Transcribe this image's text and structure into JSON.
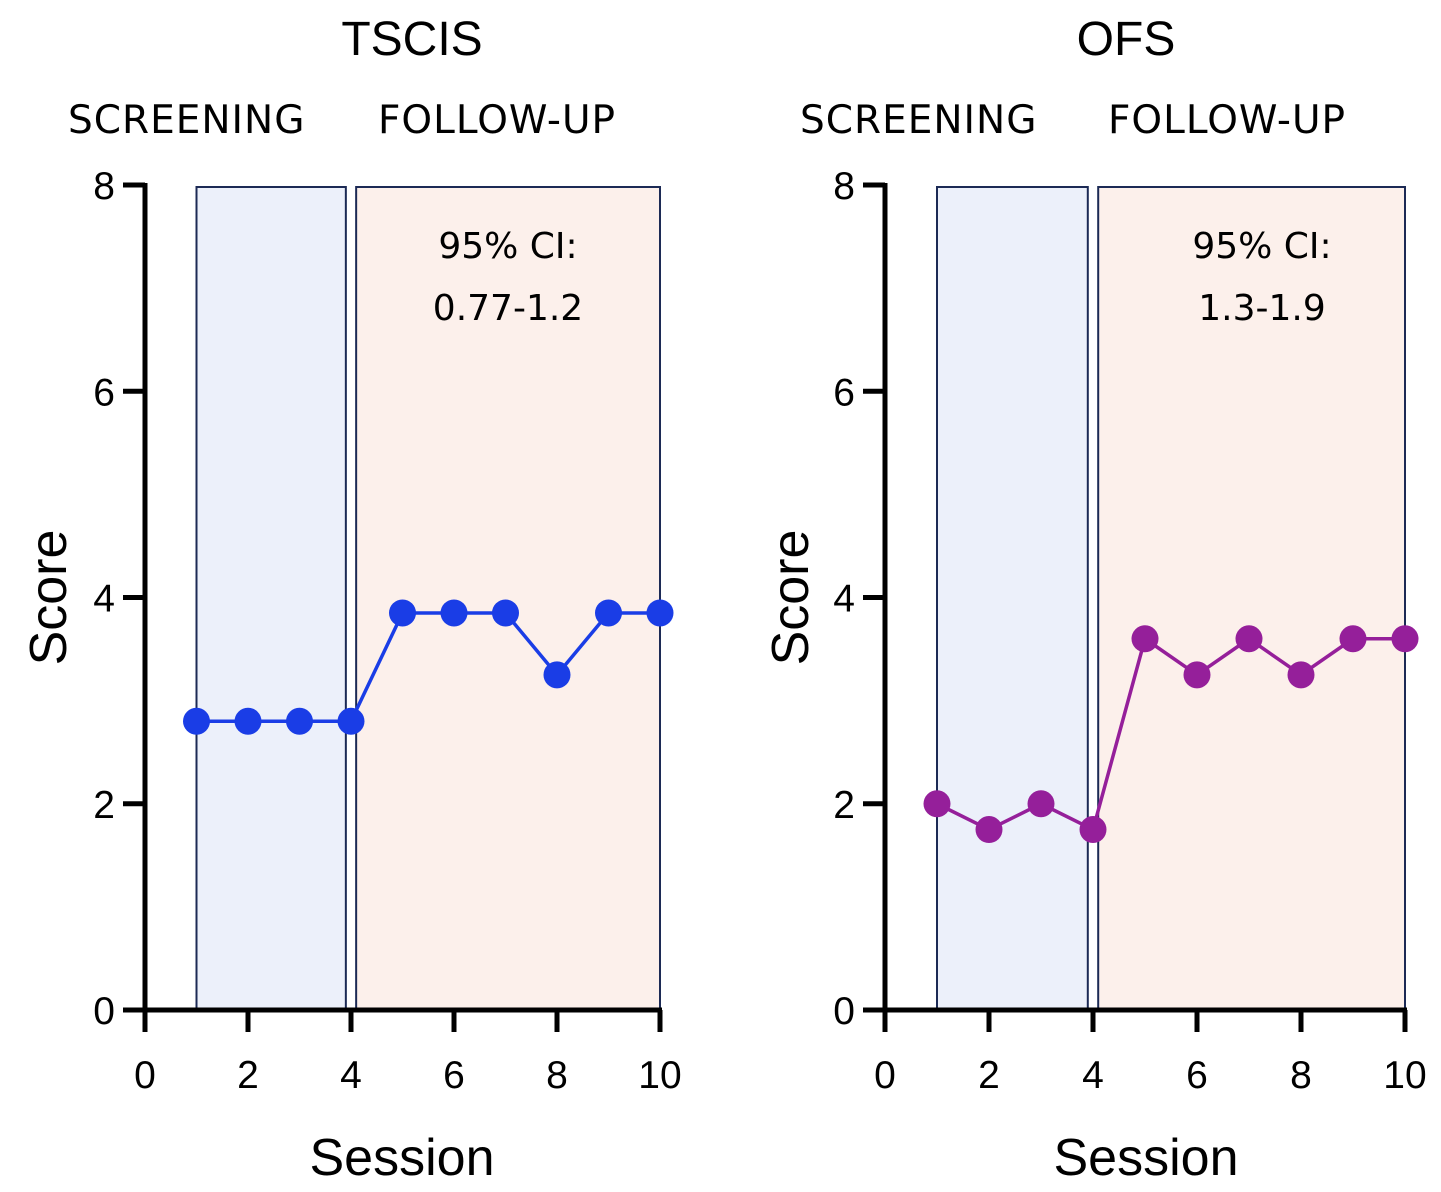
{
  "chart_data": [
    {
      "type": "line",
      "title": "TSCIS",
      "phase_labels": [
        "SCREENING",
        "FOLLOW-UP"
      ],
      "phases": [
        {
          "name": "screening",
          "x_start": 1,
          "x_end": 3.9,
          "color": "#ECF0FA"
        },
        {
          "name": "follow-up",
          "x_start": 4.1,
          "x_end": 10,
          "color": "#FCF0EB"
        }
      ],
      "annotation": [
        "95% CI:",
        "0.77-1.2"
      ],
      "xlabel": "Session",
      "ylabel": "Score",
      "xlim": [
        0,
        10
      ],
      "ylim": [
        0,
        8
      ],
      "xticks": [
        0,
        2,
        4,
        6,
        8,
        10
      ],
      "yticks": [
        0,
        2,
        4,
        6,
        8
      ],
      "series": [
        {
          "name": "TSCIS",
          "color": "#1a3de6",
          "x": [
            1,
            2,
            3,
            4,
            5,
            6,
            7,
            8,
            9,
            10
          ],
          "values": [
            2.8,
            2.8,
            2.8,
            2.8,
            3.85,
            3.85,
            3.85,
            3.25,
            3.85,
            3.85
          ]
        }
      ]
    },
    {
      "type": "line",
      "title": "OFS",
      "phase_labels": [
        "SCREENING",
        "FOLLOW-UP"
      ],
      "phases": [
        {
          "name": "screening",
          "x_start": 1,
          "x_end": 3.9,
          "color": "#ECF0FA"
        },
        {
          "name": "follow-up",
          "x_start": 4.1,
          "x_end": 10,
          "color": "#FCF0EB"
        }
      ],
      "annotation": [
        "95% CI:",
        "1.3-1.9"
      ],
      "xlabel": "Session",
      "ylabel": "Score",
      "xlim": [
        0,
        10
      ],
      "ylim": [
        0,
        8
      ],
      "xticks": [
        0,
        2,
        4,
        6,
        8,
        10
      ],
      "yticks": [
        0,
        2,
        4,
        6,
        8
      ],
      "series": [
        {
          "name": "OFS",
          "color": "#951f9a",
          "x": [
            1,
            2,
            3,
            4,
            5,
            6,
            7,
            8,
            9,
            10
          ],
          "values": [
            2.0,
            1.75,
            2.0,
            1.75,
            3.6,
            3.25,
            3.6,
            3.25,
            3.6,
            3.6
          ]
        }
      ]
    }
  ]
}
